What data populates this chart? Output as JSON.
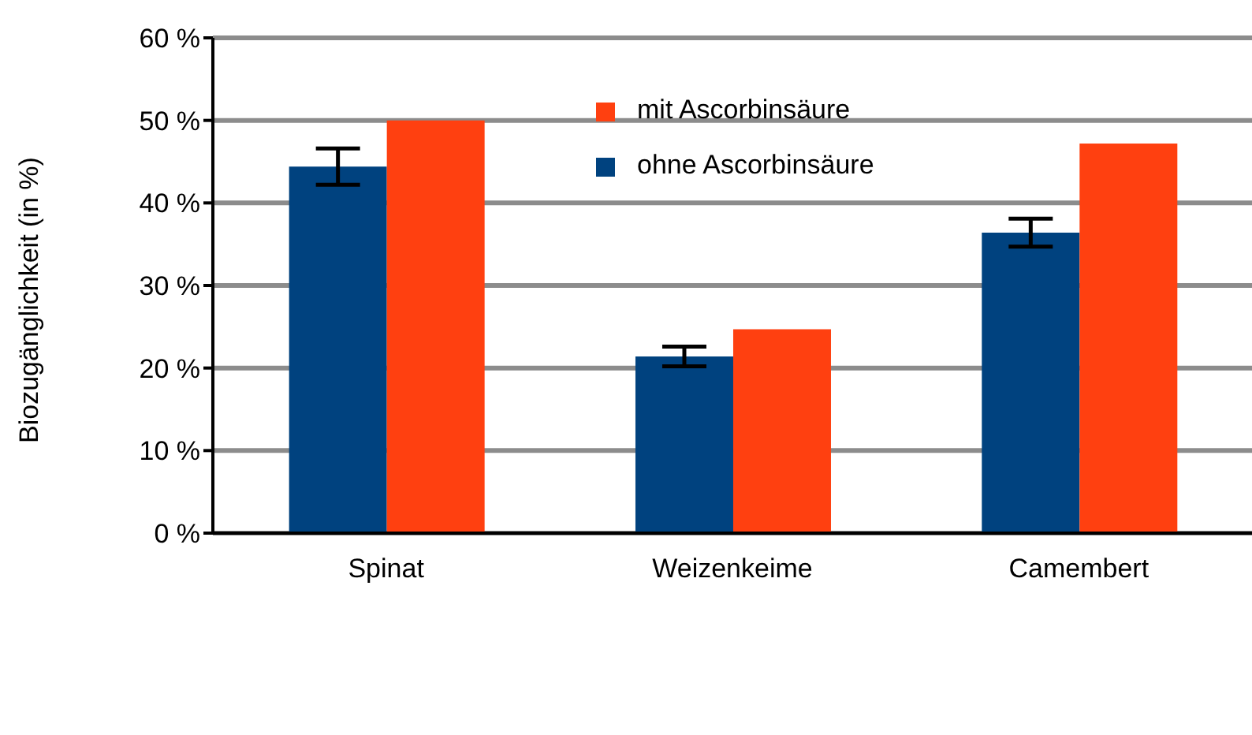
{
  "chart_data": {
    "type": "bar",
    "ylabel": "Biozugänglichkeit (in %)",
    "categories": [
      "Spinat",
      "Weizenkeime",
      "Camembert"
    ],
    "series": [
      {
        "name": "ohne Ascorbinsäure",
        "color": "#00427f",
        "values": [
          44.4,
          21.4,
          36.4
        ],
        "errors": [
          2.2,
          1.2,
          1.7
        ]
      },
      {
        "name": "mit Ascorbinsäure",
        "color": "#ff4010",
        "values": [
          50,
          24.7,
          47.2
        ]
      }
    ],
    "ylim": [
      0,
      60
    ],
    "yticks": [
      {
        "value": 0,
        "label": "0 %"
      },
      {
        "value": 10,
        "label": "10 %"
      },
      {
        "value": 20,
        "label": "20 %"
      },
      {
        "value": 30,
        "label": "30 %"
      },
      {
        "value": 40,
        "label": "40 %"
      },
      {
        "value": 50,
        "label": "50 %"
      },
      {
        "value": 60,
        "label": "60 %"
      }
    ],
    "grid": "y",
    "legend": "top right"
  }
}
